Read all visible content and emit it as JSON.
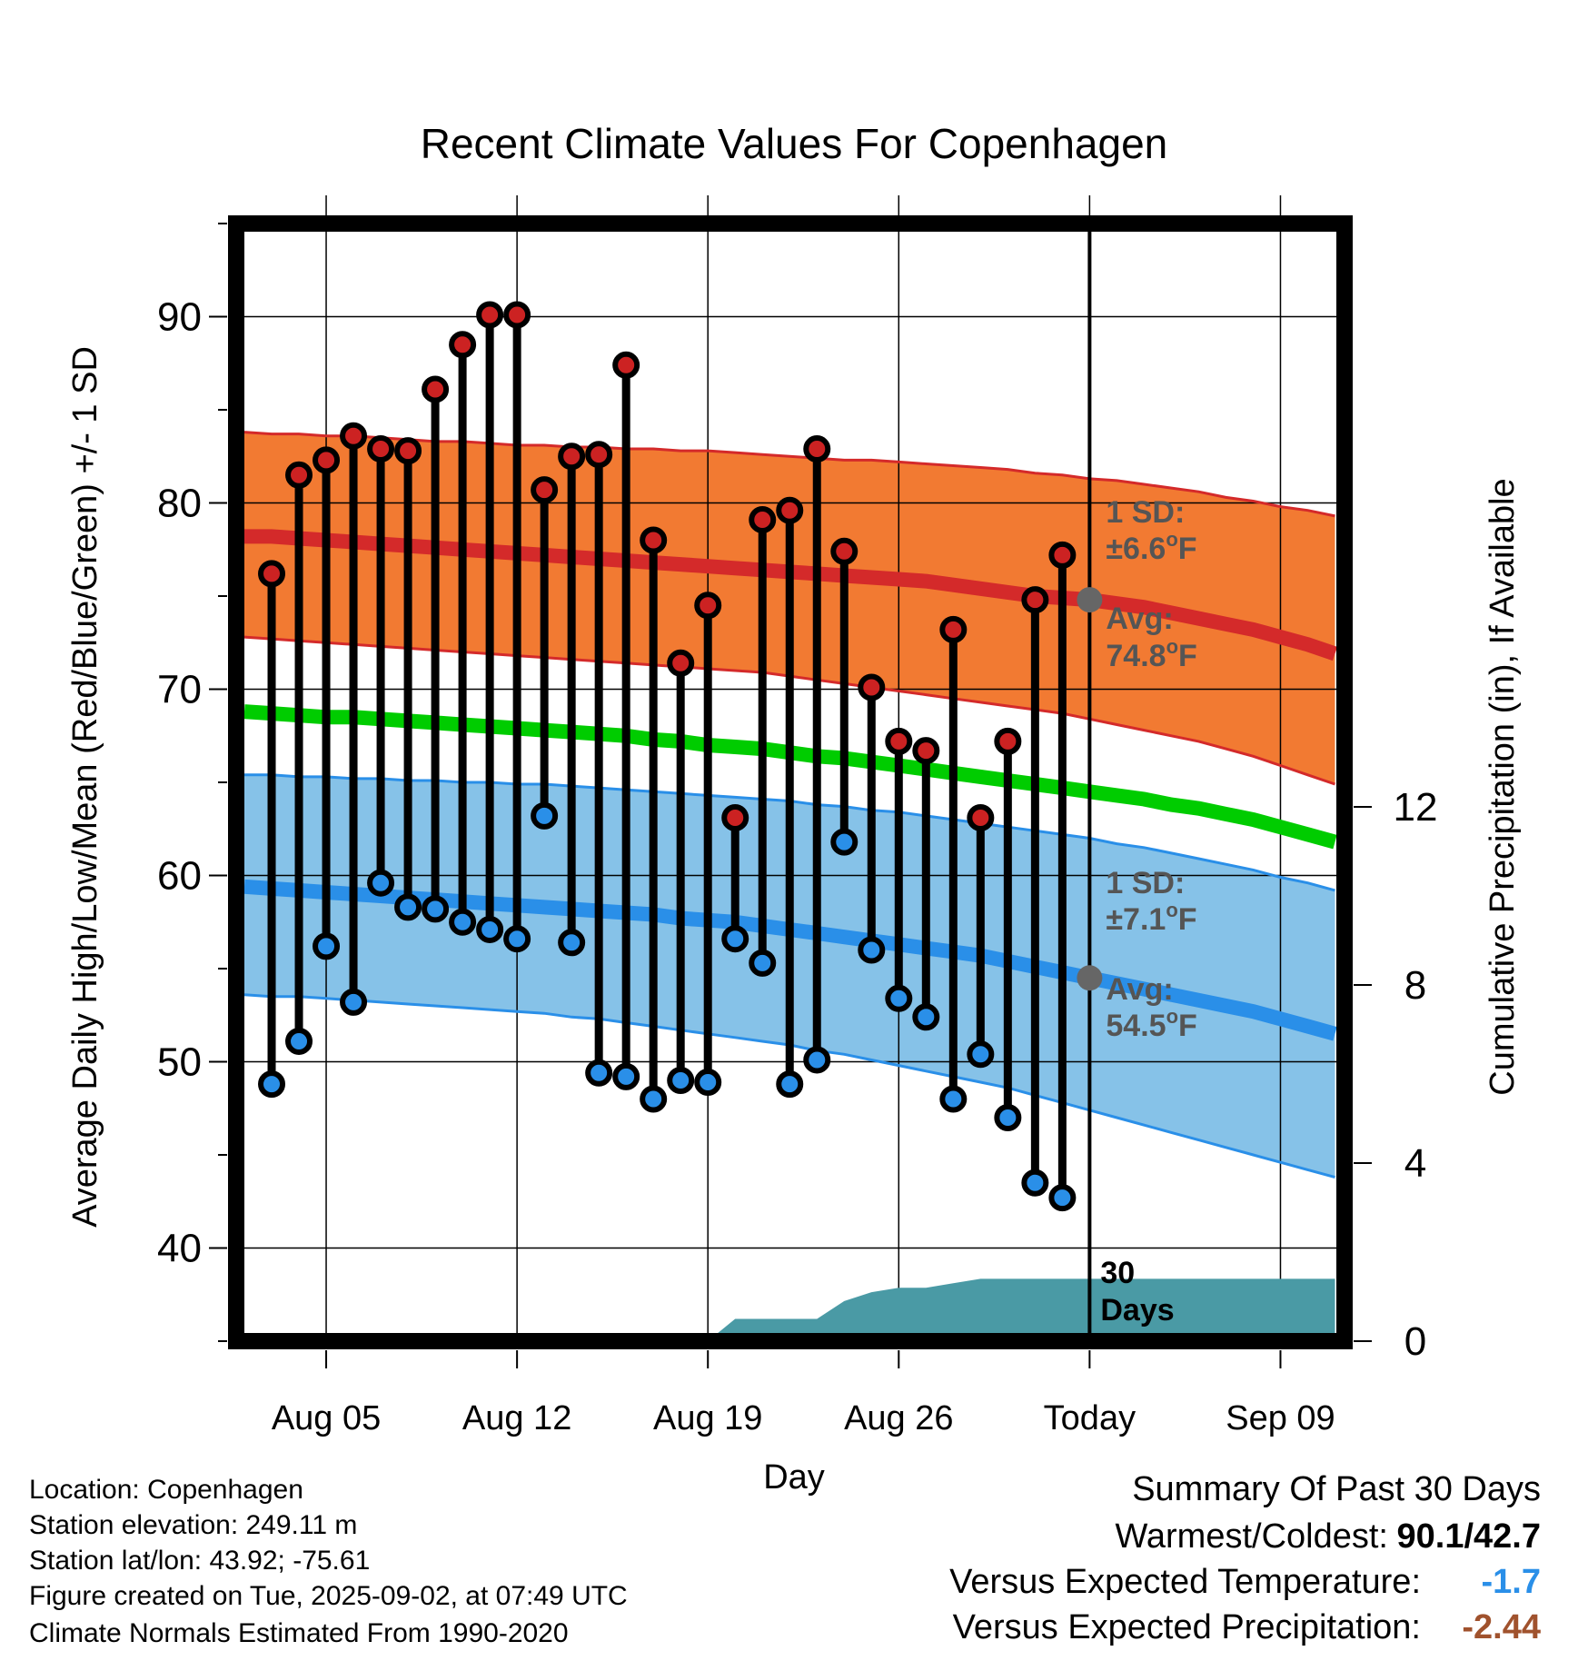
{
  "chart_data": {
    "type": "line",
    "title": "Recent Climate Values For Copenhagen",
    "xlabel": "Day",
    "ylabel": "Average Daily High/Low/Mean (Red/Blue/Green) +/- 1 SD",
    "y2label": "Cumulative Precipitation (in), If Available",
    "ylim": [
      35,
      95
    ],
    "y2lim": [
      0,
      24
    ],
    "yticks": [
      40,
      50,
      60,
      70,
      80,
      90
    ],
    "yticks_minor": [
      35,
      45,
      55,
      65,
      75,
      85,
      95
    ],
    "y2ticks": [
      0,
      4,
      8,
      12
    ],
    "x_dates": [
      "Aug 02",
      "Aug 03",
      "Aug 04",
      "Aug 05",
      "Aug 06",
      "Aug 07",
      "Aug 08",
      "Aug 09",
      "Aug 10",
      "Aug 11",
      "Aug 12",
      "Aug 13",
      "Aug 14",
      "Aug 15",
      "Aug 16",
      "Aug 17",
      "Aug 18",
      "Aug 19",
      "Aug 20",
      "Aug 21",
      "Aug 22",
      "Aug 23",
      "Aug 24",
      "Aug 25",
      "Aug 26",
      "Aug 27",
      "Aug 28",
      "Aug 29",
      "Aug 30",
      "Aug 31",
      "Sep 01",
      "Sep 02",
      "Sep 03",
      "Sep 04",
      "Sep 05",
      "Sep 06",
      "Sep 07",
      "Sep 08",
      "Sep 09",
      "Sep 10",
      "Sep 11"
    ],
    "xticks": [
      {
        "label": "Aug 05",
        "date": "Aug 05"
      },
      {
        "label": "Aug 12",
        "date": "Aug 12"
      },
      {
        "label": "Aug 19",
        "date": "Aug 19"
      },
      {
        "label": "Aug 26",
        "date": "Aug 26"
      },
      {
        "label": "Today",
        "date": "Sep 02"
      },
      {
        "label": "Sep 09",
        "date": "Sep 09"
      }
    ],
    "observed_dates": [
      "Aug 03",
      "Aug 04",
      "Aug 05",
      "Aug 06",
      "Aug 07",
      "Aug 08",
      "Aug 09",
      "Aug 10",
      "Aug 11",
      "Aug 12",
      "Aug 13",
      "Aug 14",
      "Aug 15",
      "Aug 16",
      "Aug 17",
      "Aug 18",
      "Aug 19",
      "Aug 20",
      "Aug 21",
      "Aug 22",
      "Aug 23",
      "Aug 24",
      "Aug 25",
      "Aug 26",
      "Aug 27",
      "Aug 28",
      "Aug 29",
      "Aug 30",
      "Aug 31",
      "Sep 01"
    ],
    "series": [
      {
        "name": "Daily High",
        "color": "#cc2222",
        "values": [
          76.2,
          81.5,
          82.3,
          83.6,
          82.9,
          82.8,
          86.1,
          88.5,
          90.1,
          90.1,
          80.7,
          82.5,
          82.6,
          87.4,
          78.0,
          71.4,
          74.5,
          63.1,
          79.1,
          79.6,
          82.9,
          77.4,
          70.1,
          67.2,
          66.7,
          73.2,
          63.1,
          67.2,
          74.8,
          77.2
        ]
      },
      {
        "name": "Daily Low",
        "color": "#2a8fe8",
        "values": [
          48.8,
          51.1,
          56.2,
          53.2,
          59.6,
          58.3,
          58.2,
          57.5,
          57.1,
          56.6,
          63.2,
          56.4,
          49.4,
          49.2,
          48.0,
          49.0,
          48.9,
          56.6,
          55.3,
          48.8,
          50.1,
          61.8,
          56.0,
          53.4,
          52.4,
          48.0,
          50.4,
          47.0,
          43.5,
          42.7
        ]
      }
    ],
    "normals": {
      "high_avg": [
        78.2,
        78.2,
        78.1,
        78.0,
        77.9,
        77.8,
        77.7,
        77.6,
        77.5,
        77.4,
        77.3,
        77.2,
        77.1,
        77.0,
        76.9,
        76.8,
        76.7,
        76.6,
        76.5,
        76.4,
        76.3,
        76.2,
        76.1,
        76.0,
        75.9,
        75.8,
        75.6,
        75.4,
        75.2,
        75.0,
        74.9,
        74.8,
        74.6,
        74.4,
        74.1,
        73.8,
        73.5,
        73.2,
        72.8,
        72.4,
        71.9
      ],
      "high_sd_upper": [
        83.8,
        83.7,
        83.7,
        83.6,
        83.6,
        83.5,
        83.4,
        83.3,
        83.3,
        83.2,
        83.1,
        83.1,
        83.0,
        83.0,
        82.9,
        82.9,
        82.8,
        82.8,
        82.7,
        82.6,
        82.5,
        82.4,
        82.3,
        82.3,
        82.2,
        82.1,
        82.0,
        81.9,
        81.8,
        81.6,
        81.5,
        81.3,
        81.2,
        81.0,
        80.8,
        80.6,
        80.3,
        80.1,
        79.8,
        79.6,
        79.3
      ],
      "high_sd_lower": [
        72.8,
        72.7,
        72.6,
        72.5,
        72.4,
        72.3,
        72.2,
        72.1,
        72.0,
        71.9,
        71.8,
        71.7,
        71.6,
        71.5,
        71.4,
        71.3,
        71.2,
        71.1,
        71.0,
        70.9,
        70.7,
        70.5,
        70.3,
        70.1,
        69.9,
        69.7,
        69.5,
        69.3,
        69.1,
        68.9,
        68.7,
        68.4,
        68.1,
        67.8,
        67.5,
        67.2,
        66.8,
        66.4,
        65.9,
        65.4,
        64.9
      ],
      "mean": [
        68.8,
        68.7,
        68.6,
        68.5,
        68.5,
        68.4,
        68.3,
        68.2,
        68.1,
        68.0,
        67.9,
        67.8,
        67.7,
        67.6,
        67.5,
        67.3,
        67.2,
        67.0,
        66.9,
        66.8,
        66.6,
        66.4,
        66.3,
        66.1,
        65.9,
        65.7,
        65.5,
        65.3,
        65.1,
        64.9,
        64.7,
        64.5,
        64.3,
        64.1,
        63.8,
        63.6,
        63.3,
        63.0,
        62.6,
        62.2,
        61.8
      ],
      "low_sd_upper": [
        65.4,
        65.4,
        65.3,
        65.3,
        65.2,
        65.2,
        65.1,
        65.1,
        65.0,
        65.0,
        64.9,
        64.9,
        64.8,
        64.7,
        64.6,
        64.5,
        64.4,
        64.3,
        64.2,
        64.1,
        64.0,
        63.8,
        63.7,
        63.5,
        63.4,
        63.2,
        63.0,
        62.8,
        62.6,
        62.4,
        62.2,
        62.0,
        61.7,
        61.5,
        61.2,
        60.9,
        60.6,
        60.3,
        59.9,
        59.6,
        59.2
      ],
      "low_avg": [
        59.4,
        59.3,
        59.2,
        59.1,
        59.0,
        58.9,
        58.8,
        58.7,
        58.6,
        58.5,
        58.4,
        58.3,
        58.2,
        58.1,
        58.0,
        57.9,
        57.7,
        57.6,
        57.5,
        57.3,
        57.1,
        56.9,
        56.7,
        56.5,
        56.3,
        56.1,
        55.9,
        55.7,
        55.4,
        55.1,
        54.8,
        54.5,
        54.2,
        53.9,
        53.6,
        53.3,
        53.0,
        52.7,
        52.3,
        51.9,
        51.5
      ],
      "low_sd_lower": [
        53.6,
        53.5,
        53.5,
        53.4,
        53.3,
        53.2,
        53.1,
        53.0,
        52.9,
        52.8,
        52.7,
        52.6,
        52.4,
        52.3,
        52.1,
        51.9,
        51.7,
        51.5,
        51.3,
        51.1,
        50.9,
        50.6,
        50.4,
        50.1,
        49.8,
        49.5,
        49.2,
        48.9,
        48.6,
        48.2,
        47.8,
        47.4,
        47.0,
        46.6,
        46.2,
        45.8,
        45.4,
        45.0,
        44.6,
        44.2,
        43.8
      ]
    },
    "precip_cumulative": {
      "dates": [
        "Aug 19",
        "Aug 20",
        "Aug 21",
        "Aug 22",
        "Aug 23",
        "Aug 24",
        "Aug 25",
        "Aug 26",
        "Aug 27",
        "Aug 28",
        "Aug 29",
        "Aug 30",
        "Aug 31",
        "Sep 01",
        "Sep 02",
        "Sep 11"
      ],
      "values": [
        0.0,
        0.5,
        0.5,
        0.5,
        0.5,
        0.9,
        1.1,
        1.2,
        1.2,
        1.3,
        1.4,
        1.4,
        1.4,
        1.4,
        1.4,
        1.4
      ],
      "color": "#4a9aa5"
    },
    "annotations": {
      "high_sd_label": "1 SD:",
      "high_sd_value": "±6.6",
      "high_avg_label": "Avg:",
      "high_avg_value": "74.8",
      "low_sd_label": "1 SD:",
      "low_sd_value": "±7.1",
      "low_avg_label": "Avg:",
      "low_avg_value": "54.5",
      "degree_symbol": "o",
      "unit": "F",
      "window_count": "30",
      "window_label": "Days"
    },
    "today_date": "Sep 02",
    "today_high_avg": 74.8,
    "today_low_avg": 54.5,
    "colors": {
      "high_band": "#f27a32",
      "high_line": "#d42a2a",
      "mean_line": "#00cc00",
      "low_band": "#86c2e8",
      "low_line": "#2a8fe8",
      "annotation_text": "#555555",
      "today_marker": "#666666"
    }
  },
  "info": {
    "location": "Location: Copenhagen",
    "elevation": "Station elevation: 249.11 m",
    "latlon": "Station lat/lon: 43.92; -75.61",
    "created": "Figure created on Tue, 2025-09-02, at 07:49 UTC",
    "normals": "Climate Normals Estimated From 1990-2020"
  },
  "summary": {
    "title": "Summary Of Past 30 Days",
    "warm_cold_label": "Warmest/Coldest:",
    "warmest": "90.1",
    "separator": "/",
    "coldest": "42.7",
    "temp_label": "Versus Expected Temperature:",
    "temp_value": "-1.7",
    "temp_color": "#2a8fe8",
    "precip_label": "Versus Expected Precipitation:",
    "precip_value": "-2.44",
    "precip_color": "#a0522d"
  }
}
